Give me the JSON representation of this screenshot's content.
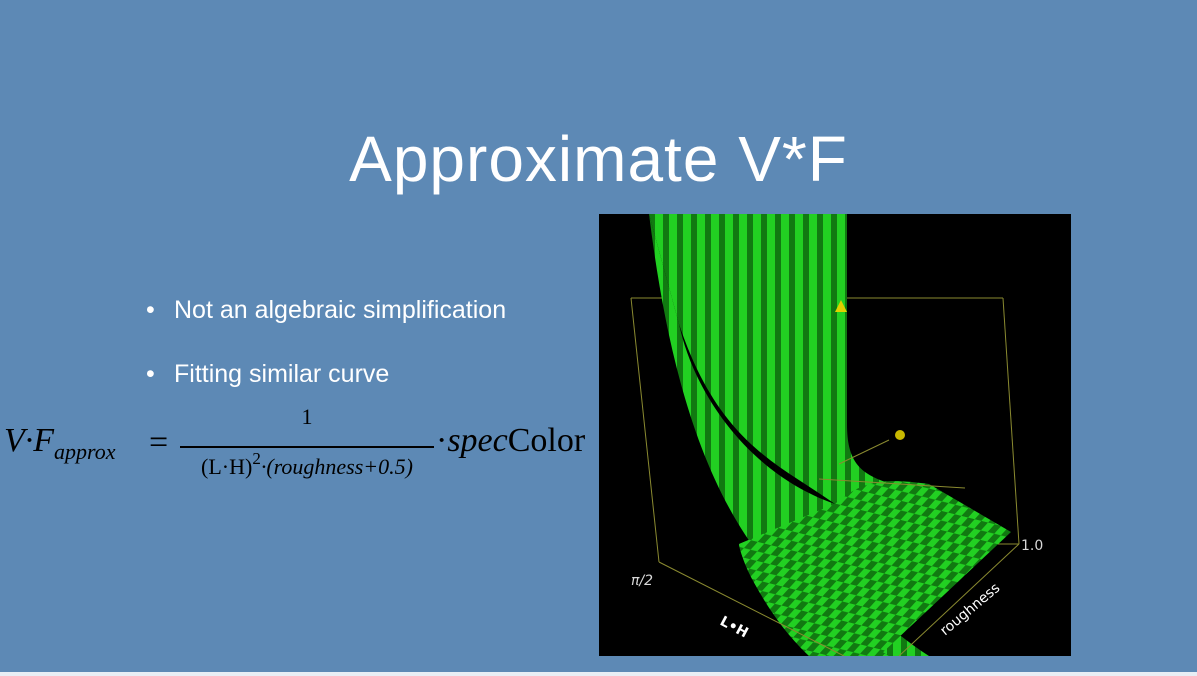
{
  "slide": {
    "title": "Approximate V*F",
    "bullets": [
      {
        "text": "Not an algebraic simplification"
      },
      {
        "text": "Fitting similar curve"
      }
    ]
  },
  "formula": {
    "lhs_var": "V·F",
    "lhs_sub": "approx",
    "eq": "=",
    "numerator": "1",
    "den_open": "(L·H)",
    "den_power": "2",
    "den_rest": "·(roughness+0.5)",
    "rhs_dot": "·",
    "rhs_spec": "spec",
    "rhs_color": "Color"
  },
  "plot": {
    "label_pi2": "π/2",
    "label_one": "1.0",
    "label_lh": "L•H",
    "label_roughness": "roughness",
    "colors": {
      "background": "#000000",
      "surface": "#22d022",
      "surface_alt": "#117a11",
      "axes": "#8a8a30",
      "marker": "#e0d000"
    }
  },
  "colors": {
    "slide_background": "#5d89b5",
    "title": "#ffffff"
  }
}
